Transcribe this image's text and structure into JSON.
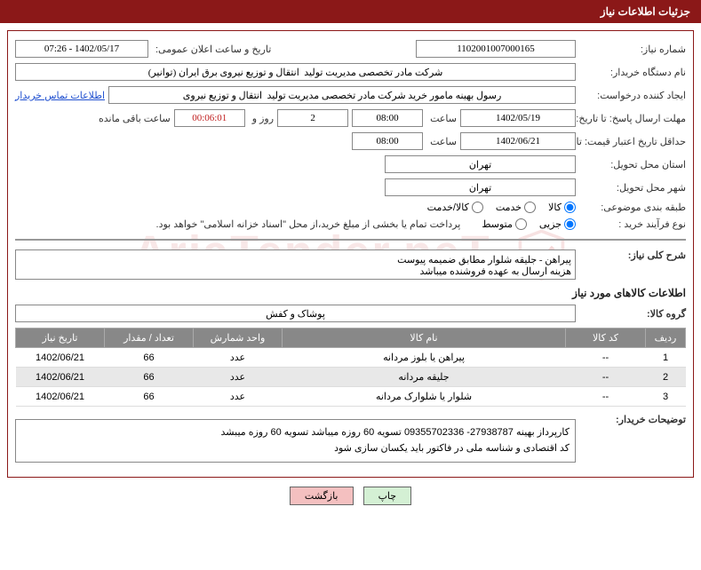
{
  "header": {
    "title": "جزئیات اطلاعات نیاز"
  },
  "fields": {
    "need_no_label": "شماره نیاز:",
    "need_no": "1102001007000165",
    "announce_label": "تاریخ و ساعت اعلان عمومی:",
    "announce": "1402/05/17 - 07:26",
    "buyer_org_label": "نام دستگاه خریدار:",
    "buyer_org": "شرکت مادر تخصصی مدیریت تولید  انتقال و توزیع نیروی برق ایران (توانیر)",
    "requester_label": "ایجاد کننده درخواست:",
    "requester": "رسول بهینه مامور خرید شرکت مادر تخصصی مدیریت تولید  انتقال و توزیع نیروی",
    "contact_link": "اطلاعات تماس خریدار",
    "reply_deadline_label": "مهلت ارسال پاسخ: تا تاریخ:",
    "reply_date": "1402/05/19",
    "time_label": "ساعت",
    "reply_time": "08:00",
    "days": "2",
    "days_suffix": "روز و",
    "countdown": "00:06:01",
    "remain_suffix": "ساعت باقی مانده",
    "valid_label": "حداقل تاریخ اعتبار قیمت: تا تاریخ:",
    "valid_date": "1402/06/21",
    "valid_time": "08:00",
    "province_label": "استان محل تحویل:",
    "province": "تهران",
    "city_label": "شهر محل تحویل:",
    "city": "تهران",
    "category_label": "طبقه بندی موضوعی:",
    "cat_goods": "کالا",
    "cat_service": "خدمت",
    "cat_both": "کالا/خدمت",
    "process_label": "نوع فرآیند خرید :",
    "proc_small": "جزیی",
    "proc_medium": "متوسط",
    "payment_note": "پرداخت تمام یا بخشی از مبلغ خرید،از محل \"اسناد خزانه اسلامی\" خواهد بود.",
    "summary_label": "شرح کلی نیاز:",
    "summary": "پیراهن - جلیقه شلوار مطابق ضمیمه پیوست\nهزینه ارسال به عهده فروشنده میباشد",
    "goods_info_title": "اطلاعات کالاهای مورد نیاز",
    "group_label": "گروه کالا:",
    "group": "پوشاک و کفش",
    "buyer_notes_label": "توضیحات خریدار:",
    "buyer_notes": "کارپرداز بهینه 27938787- 09355702336      تسویه 60 روزه میباشد تسویه 60 روزه میبشد\nکد اقتصادی و شناسه ملی در فاکتور باید یکسان سازی شود"
  },
  "table": {
    "headers": {
      "row": "ردیف",
      "code": "کد کالا",
      "name": "نام کالا",
      "unit": "واحد شمارش",
      "qty": "تعداد / مقدار",
      "date": "تاریخ نیاز"
    },
    "rows": [
      {
        "idx": "1",
        "code": "--",
        "name": "پیراهن یا بلوز مردانه",
        "unit": "عدد",
        "qty": "66",
        "date": "1402/06/21"
      },
      {
        "idx": "2",
        "code": "--",
        "name": "جلیقه مردانه",
        "unit": "عدد",
        "qty": "66",
        "date": "1402/06/21"
      },
      {
        "idx": "3",
        "code": "--",
        "name": "شلوار یا شلوارک مردانه",
        "unit": "عدد",
        "qty": "66",
        "date": "1402/06/21"
      }
    ]
  },
  "buttons": {
    "print": "چاپ",
    "back": "بازگشت"
  },
  "watermark": "AriaTender.neT"
}
